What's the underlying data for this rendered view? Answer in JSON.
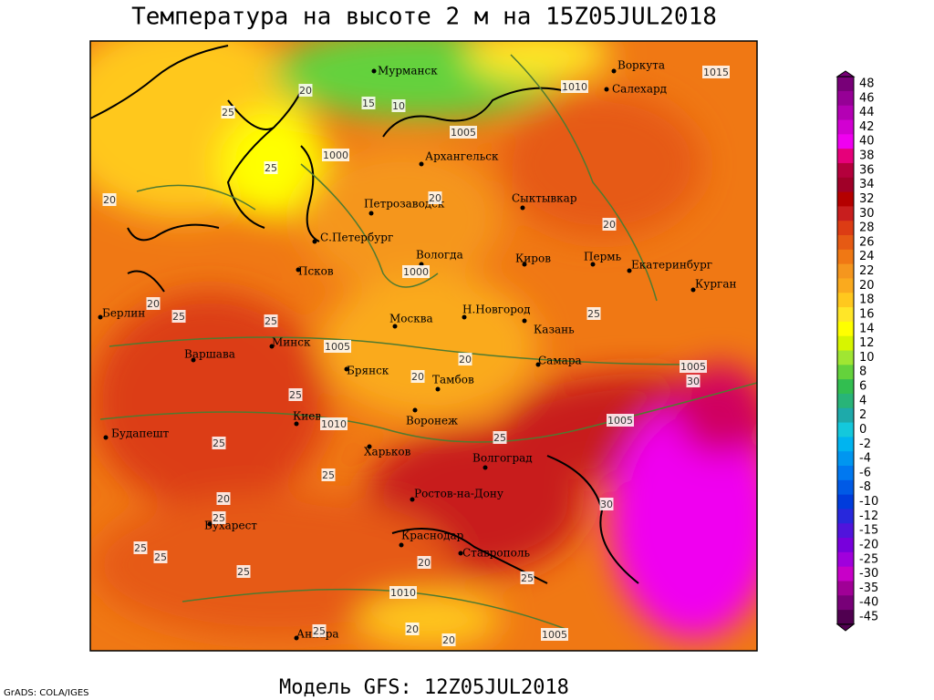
{
  "title": "Температура на высоте 2 м на 15Z05JUL2018",
  "footer": "Модель GFS: 12Z05JUL2018",
  "credit": "GrADS: COLA/IGES",
  "cities": [
    "Воркута",
    "Салехард",
    "Мурманск",
    "Архангельск",
    "Петрозаводск",
    "Сыктывкар",
    "С.Петербург",
    "Вологда",
    "Киров",
    "Пермь",
    "Екатеринбург",
    "Псков",
    "Курган",
    "Берлин",
    "Н.Новгород",
    "Москва",
    "Казань",
    "Минск",
    "Варшава",
    "Брянск",
    "Самара",
    "Тамбов",
    "Киев",
    "Воронеж",
    "Будапешт",
    "Харьков",
    "Волгоград",
    "Ростов-на-Дону",
    "Бухарест",
    "Краснодар",
    "Ставрополь",
    "Анкара"
  ],
  "contour_labels": [
    20,
    15,
    10,
    1000,
    1005,
    1010,
    1015,
    20,
    25,
    25,
    20,
    20,
    1000,
    20,
    25,
    25,
    1005,
    20,
    25,
    20,
    25,
    1010,
    25,
    25,
    1005,
    30,
    1005,
    25,
    20,
    25,
    25,
    25,
    30,
    25,
    1010,
    20,
    25,
    1005,
    25,
    20,
    20
  ],
  "colorbar": {
    "levels": [
      48,
      46,
      44,
      42,
      40,
      38,
      36,
      34,
      32,
      30,
      28,
      26,
      24,
      22,
      20,
      18,
      16,
      14,
      12,
      10,
      8,
      6,
      4,
      2,
      0,
      -2,
      -4,
      -6,
      -8,
      -10,
      -12,
      -15,
      -20,
      -25,
      -30,
      -35,
      -40,
      -45
    ],
    "colors": [
      "#780078",
      "#960096",
      "#b400b4",
      "#d200d2",
      "#f000f0",
      "#e6007a",
      "#b4003c",
      "#a00028",
      "#b40000",
      "#c81e1e",
      "#dc3c14",
      "#e65a14",
      "#f07814",
      "#f5961e",
      "#faaa1e",
      "#ffc81e",
      "#ffe628",
      "#ffff00",
      "#d7f500",
      "#a0e632",
      "#64d23c",
      "#32be50",
      "#28b478",
      "#1eaaaa",
      "#14c8dc",
      "#00b4f0",
      "#0096f0",
      "#0078f0",
      "#005ae6",
      "#003cdc",
      "#2828dc",
      "#5014dc",
      "#7800dc",
      "#a000dc",
      "#c800c8",
      "#a00096",
      "#780078",
      "#500050"
    ]
  }
}
